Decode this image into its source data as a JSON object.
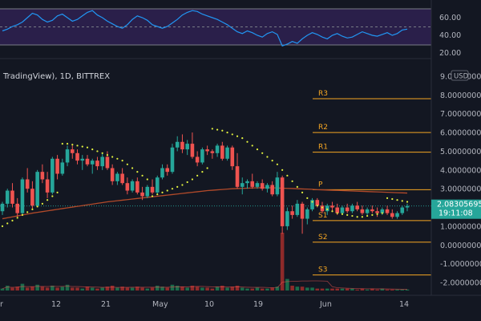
{
  "header": {
    "symbol_text": "TradingView), 1D, BITTREX",
    "currency_label": "USD"
  },
  "rsi_axis": {
    "labels": [
      "60.00",
      "40.00",
      "20.00"
    ]
  },
  "price_axis": {
    "labels": [
      "9.00000000",
      "8.00000000",
      "7.00000000",
      "6.00000000",
      "5.00000000",
      "4.00000000",
      "3.00000000",
      "2.00000000",
      "1.00000000",
      "0.00000000",
      "-1.00000000",
      "-2.00000000"
    ]
  },
  "time_axis": {
    "labels": [
      "r",
      "12",
      "21",
      "May",
      "10",
      "19",
      "Jun",
      "14"
    ]
  },
  "pivots": [
    {
      "label": "R3",
      "value": 7.8
    },
    {
      "label": "R2",
      "value": 6.0
    },
    {
      "label": "R1",
      "value": 4.95
    },
    {
      "label": "P",
      "value": 2.95
    },
    {
      "label": "S1",
      "value": 1.3
    },
    {
      "label": "S2",
      "value": 0.15
    },
    {
      "label": "S3",
      "value": -1.6
    }
  ],
  "last_price": {
    "value": "2.08305695",
    "countdown": "19:11:08"
  },
  "colors": {
    "up": "#26a69a",
    "down": "#ef5350",
    "pivot": "#f5a623",
    "ma": "#b24a2a",
    "psar": "#e3f23f",
    "rsi": "#2196f3"
  },
  "chart_data": {
    "type": "candlestick",
    "candles": [
      [
        1.8,
        2.3,
        1.6,
        2.2
      ],
      [
        2.2,
        3.0,
        2.0,
        2.9
      ],
      [
        2.9,
        3.3,
        2.0,
        2.2
      ],
      [
        2.2,
        2.5,
        1.5,
        1.7
      ],
      [
        1.7,
        3.6,
        1.6,
        3.5
      ],
      [
        3.5,
        4.1,
        2.8,
        3.0
      ],
      [
        3.0,
        3.4,
        1.9,
        2.1
      ],
      [
        2.1,
        4.0,
        2.0,
        3.9
      ],
      [
        3.9,
        4.3,
        3.3,
        3.5
      ],
      [
        3.5,
        3.9,
        2.5,
        2.8
      ],
      [
        2.8,
        4.7,
        2.7,
        4.6
      ],
      [
        4.6,
        4.8,
        3.5,
        3.8
      ],
      [
        3.8,
        4.6,
        3.7,
        4.4
      ],
      [
        4.4,
        5.3,
        4.2,
        5.1
      ],
      [
        5.1,
        5.3,
        4.6,
        4.9
      ],
      [
        4.9,
        5.1,
        4.3,
        4.5
      ],
      [
        4.5,
        4.8,
        4.0,
        4.6
      ],
      [
        4.6,
        4.8,
        4.2,
        4.3
      ],
      [
        4.3,
        4.6,
        3.8,
        4.5
      ],
      [
        4.5,
        4.7,
        4.0,
        4.2
      ],
      [
        4.2,
        4.9,
        4.0,
        4.7
      ],
      [
        4.7,
        5.0,
        4.0,
        4.1
      ],
      [
        4.1,
        4.3,
        3.2,
        3.4
      ],
      [
        3.4,
        3.9,
        3.2,
        3.8
      ],
      [
        3.8,
        4.1,
        3.2,
        3.3
      ],
      [
        3.3,
        3.6,
        2.7,
        2.9
      ],
      [
        2.9,
        3.5,
        2.8,
        3.4
      ],
      [
        3.4,
        3.6,
        2.7,
        2.8
      ],
      [
        2.8,
        3.1,
        2.4,
        2.6
      ],
      [
        2.6,
        3.2,
        2.5,
        3.1
      ],
      [
        3.1,
        3.5,
        2.7,
        2.8
      ],
      [
        2.8,
        3.7,
        2.7,
        3.6
      ],
      [
        3.6,
        4.3,
        3.5,
        4.1
      ],
      [
        4.1,
        4.3,
        3.7,
        3.9
      ],
      [
        3.9,
        5.4,
        3.8,
        5.2
      ],
      [
        5.2,
        5.8,
        5.0,
        5.5
      ],
      [
        5.5,
        5.9,
        4.9,
        5.1
      ],
      [
        5.1,
        5.6,
        4.8,
        5.4
      ],
      [
        5.4,
        6.0,
        4.6,
        4.7
      ],
      [
        4.7,
        5.0,
        4.2,
        4.4
      ],
      [
        4.4,
        5.2,
        4.3,
        5.1
      ],
      [
        5.1,
        5.3,
        4.8,
        5.0
      ],
      [
        5.0,
        5.1,
        4.6,
        4.9
      ],
      [
        4.9,
        5.4,
        4.7,
        5.3
      ],
      [
        5.3,
        5.5,
        4.5,
        4.6
      ],
      [
        4.6,
        5.3,
        4.5,
        5.2
      ],
      [
        5.2,
        5.3,
        4.0,
        4.2
      ],
      [
        4.2,
        4.9,
        3.0,
        3.1
      ],
      [
        3.1,
        3.6,
        2.7,
        3.3
      ],
      [
        3.3,
        3.5,
        3.0,
        3.4
      ],
      [
        3.4,
        3.8,
        3.0,
        3.1
      ],
      [
        3.1,
        3.4,
        3.0,
        3.3
      ],
      [
        3.3,
        3.5,
        2.9,
        3.0
      ],
      [
        3.0,
        3.3,
        2.8,
        3.2
      ],
      [
        3.2,
        3.4,
        2.6,
        2.7
      ],
      [
        2.7,
        3.9,
        2.6,
        3.6
      ],
      [
        3.6,
        3.7,
        0.6,
        1.0
      ],
      [
        1.0,
        2.0,
        0.8,
        1.8
      ],
      [
        1.8,
        2.1,
        1.4,
        1.6
      ],
      [
        1.6,
        2.4,
        1.5,
        2.2
      ],
      [
        2.2,
        2.3,
        0.6,
        1.4
      ],
      [
        1.4,
        2.0,
        1.1,
        1.9
      ],
      [
        1.9,
        2.5,
        1.8,
        2.4
      ],
      [
        2.4,
        2.5,
        2.0,
        2.1
      ],
      [
        2.1,
        2.3,
        1.7,
        1.8
      ],
      [
        1.8,
        2.2,
        1.6,
        2.1
      ],
      [
        2.1,
        2.3,
        1.8,
        2.0
      ],
      [
        2.0,
        2.2,
        1.6,
        1.7
      ],
      [
        1.7,
        2.1,
        1.6,
        2.0
      ],
      [
        2.0,
        2.2,
        1.7,
        1.8
      ],
      [
        1.8,
        2.2,
        1.7,
        2.1
      ],
      [
        2.1,
        2.3,
        1.8,
        1.9
      ],
      [
        1.9,
        2.1,
        1.6,
        1.7
      ],
      [
        1.7,
        2.0,
        1.6,
        1.9
      ],
      [
        1.9,
        2.1,
        1.7,
        1.8
      ],
      [
        1.8,
        2.0,
        1.5,
        1.7
      ],
      [
        1.7,
        2.0,
        1.6,
        1.9
      ],
      [
        1.9,
        2.1,
        1.6,
        1.7
      ],
      [
        1.7,
        1.9,
        1.4,
        1.5
      ],
      [
        1.5,
        1.8,
        1.4,
        1.7
      ],
      [
        1.7,
        2.1,
        1.6,
        2.0
      ],
      [
        2.0,
        2.2,
        1.8,
        2.08
      ]
    ],
    "volume": [
      2,
      5,
      3,
      4,
      7,
      3,
      4,
      6,
      4,
      3,
      5,
      3,
      4,
      6,
      3,
      3,
      2,
      4,
      3,
      2,
      3,
      4,
      5,
      3,
      4,
      3,
      3,
      4,
      3,
      2,
      3,
      5,
      4,
      3,
      6,
      5,
      4,
      3,
      5,
      4,
      3,
      3,
      2,
      4,
      5,
      3,
      4,
      5,
      3,
      2,
      2,
      3,
      2,
      2,
      3,
      4,
      60,
      12,
      5,
      4,
      4,
      3,
      3,
      2,
      2,
      2,
      2,
      2,
      2,
      2,
      2,
      1,
      2,
      1,
      2,
      1,
      2,
      1,
      1,
      1,
      1,
      1
    ],
    "ma": [
      1.4,
      1.45,
      1.5,
      1.55,
      1.6,
      1.65,
      1.7,
      1.74,
      1.78,
      1.82,
      1.86,
      1.9,
      1.94,
      1.98,
      2.02,
      2.06,
      2.1,
      2.14,
      2.18,
      2.22,
      2.26,
      2.3,
      2.33,
      2.36,
      2.39,
      2.42,
      2.45,
      2.48,
      2.51,
      2.54,
      2.57,
      2.6,
      2.63,
      2.66,
      2.69,
      2.72,
      2.75,
      2.78,
      2.81,
      2.84,
      2.87,
      2.9,
      2.92,
      2.94,
      2.96,
      2.98,
      3.0,
      3.01,
      3.02,
      3.03,
      3.04,
      3.05,
      3.05,
      3.05,
      3.05,
      3.04,
      3.03,
      3.02,
      3.01,
      3.0,
      2.99,
      2.98,
      2.97,
      2.95,
      2.94,
      2.93,
      2.92,
      2.91,
      2.9,
      2.89,
      2.88,
      2.87,
      2.86,
      2.85,
      2.84,
      2.83,
      2.82,
      2.81,
      2.8,
      2.79,
      2.78,
      2.77
    ],
    "psar": [
      1.0,
      1.15,
      1.3,
      1.45,
      1.6,
      1.75,
      1.9,
      2.05,
      2.2,
      2.4,
      2.6,
      2.8,
      5.4,
      5.4,
      5.35,
      5.3,
      5.25,
      5.2,
      5.1,
      5.0,
      4.9,
      4.8,
      4.7,
      4.6,
      4.5,
      4.3,
      4.1,
      3.9,
      3.7,
      3.5,
      2.6,
      2.7,
      2.8,
      2.9,
      3.0,
      3.1,
      3.2,
      3.35,
      3.5,
      3.7,
      3.9,
      4.1,
      6.2,
      6.15,
      6.1,
      6.0,
      5.9,
      5.8,
      5.7,
      5.5,
      5.3,
      5.1,
      4.9,
      4.7,
      4.5,
      4.3,
      4.0,
      3.7,
      3.4,
      3.1,
      2.8,
      2.5,
      2.3,
      2.1,
      2.0,
      1.9,
      1.8,
      1.7,
      1.65,
      1.6,
      1.55,
      1.5,
      1.5,
      1.55,
      1.6,
      1.65,
      1.7,
      2.5,
      2.45,
      2.4,
      2.35,
      2.3
    ],
    "rsi": [
      45,
      47,
      50,
      52,
      55,
      60,
      65,
      63,
      58,
      55,
      57,
      62,
      64,
      60,
      56,
      58,
      62,
      66,
      68,
      63,
      60,
      56,
      53,
      50,
      48,
      52,
      58,
      62,
      60,
      57,
      52,
      50,
      48,
      50,
      54,
      58,
      63,
      66,
      68,
      67,
      64,
      62,
      60,
      58,
      55,
      52,
      48,
      44,
      42,
      45,
      43,
      40,
      38,
      42,
      44,
      41,
      28,
      30,
      33,
      31,
      36,
      40,
      43,
      41,
      38,
      36,
      40,
      42,
      39,
      37,
      38,
      41,
      44,
      42,
      40,
      39,
      41,
      43,
      40,
      42,
      46,
      47
    ],
    "price_ylim": [
      -2.3,
      9.3
    ],
    "rsi_ylim": [
      18,
      72
    ]
  }
}
